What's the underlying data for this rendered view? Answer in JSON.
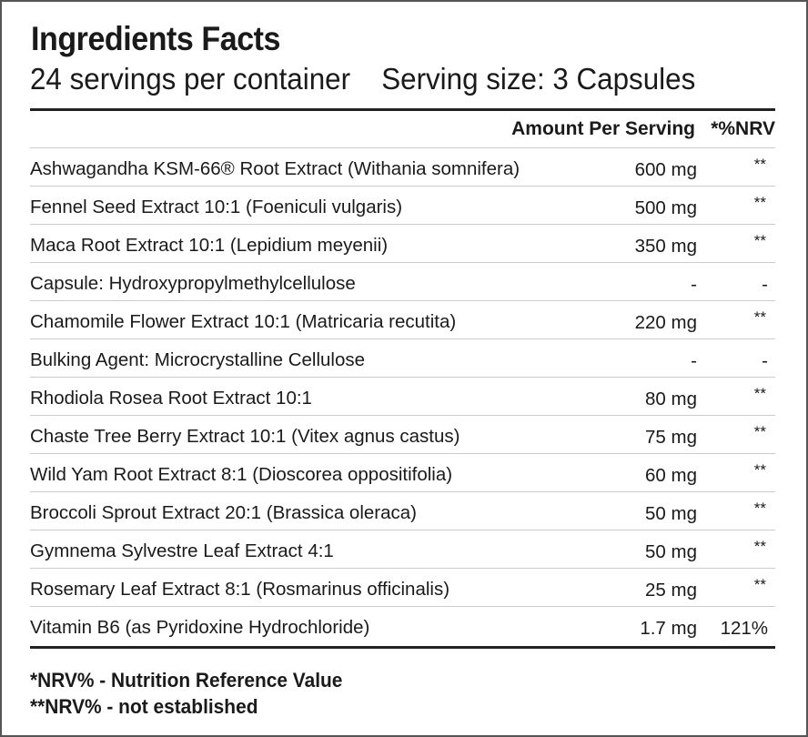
{
  "title": "Ingredients Facts",
  "servings_per_container": "24 servings per container",
  "serving_size": "Serving size: 3 Capsules",
  "header": {
    "amount": "Amount Per Serving",
    "nrv": "*%NRV"
  },
  "rows": [
    {
      "name": "Ashwagandha KSM-66® Root Extract (Withania somnifera)",
      "amount": "600 mg",
      "nrv": "**"
    },
    {
      "name": "Fennel Seed Extract 10:1 (Foeniculi vulgaris)",
      "amount": "500 mg",
      "nrv": "**"
    },
    {
      "name": "Maca Root Extract 10:1 (Lepidium meyenii)",
      "amount": "350 mg",
      "nrv": "**"
    },
    {
      "name": "Capsule: Hydroxypropylmethylcellulose",
      "amount": "-",
      "nrv": "-"
    },
    {
      "name": "Chamomile Flower Extract 10:1 (Matricaria recutita)",
      "amount": "220 mg",
      "nrv": "**"
    },
    {
      "name": "Bulking Agent: Microcrystalline Cellulose",
      "amount": "-",
      "nrv": "-"
    },
    {
      "name": "Rhodiola Rosea Root Extract 10:1",
      "amount": "80 mg",
      "nrv": "**"
    },
    {
      "name": "Chaste Tree Berry Extract 10:1 (Vitex agnus castus)",
      "amount": "75 mg",
      "nrv": "**"
    },
    {
      "name": "Wild Yam Root Extract 8:1 (Dioscorea oppositifolia)",
      "amount": "60 mg",
      "nrv": "**"
    },
    {
      "name": "Broccoli Sprout Extract 20:1 (Brassica oleraca)",
      "amount": "50 mg",
      "nrv": "**"
    },
    {
      "name": "Gymnema Sylvestre Leaf Extract 4:1",
      "amount": "50 mg",
      "nrv": "**"
    },
    {
      "name": "Rosemary Leaf Extract 8:1 (Rosmarinus officinalis)",
      "amount": "25 mg",
      "nrv": "**"
    },
    {
      "name": "Vitamin B6 (as Pyridoxine Hydrochloride)",
      "amount": "1.7 mg",
      "nrv": "121%"
    }
  ],
  "footnotes": [
    "*NRV% - Nutrition Reference Value",
    "**NRV% - not established"
  ]
}
